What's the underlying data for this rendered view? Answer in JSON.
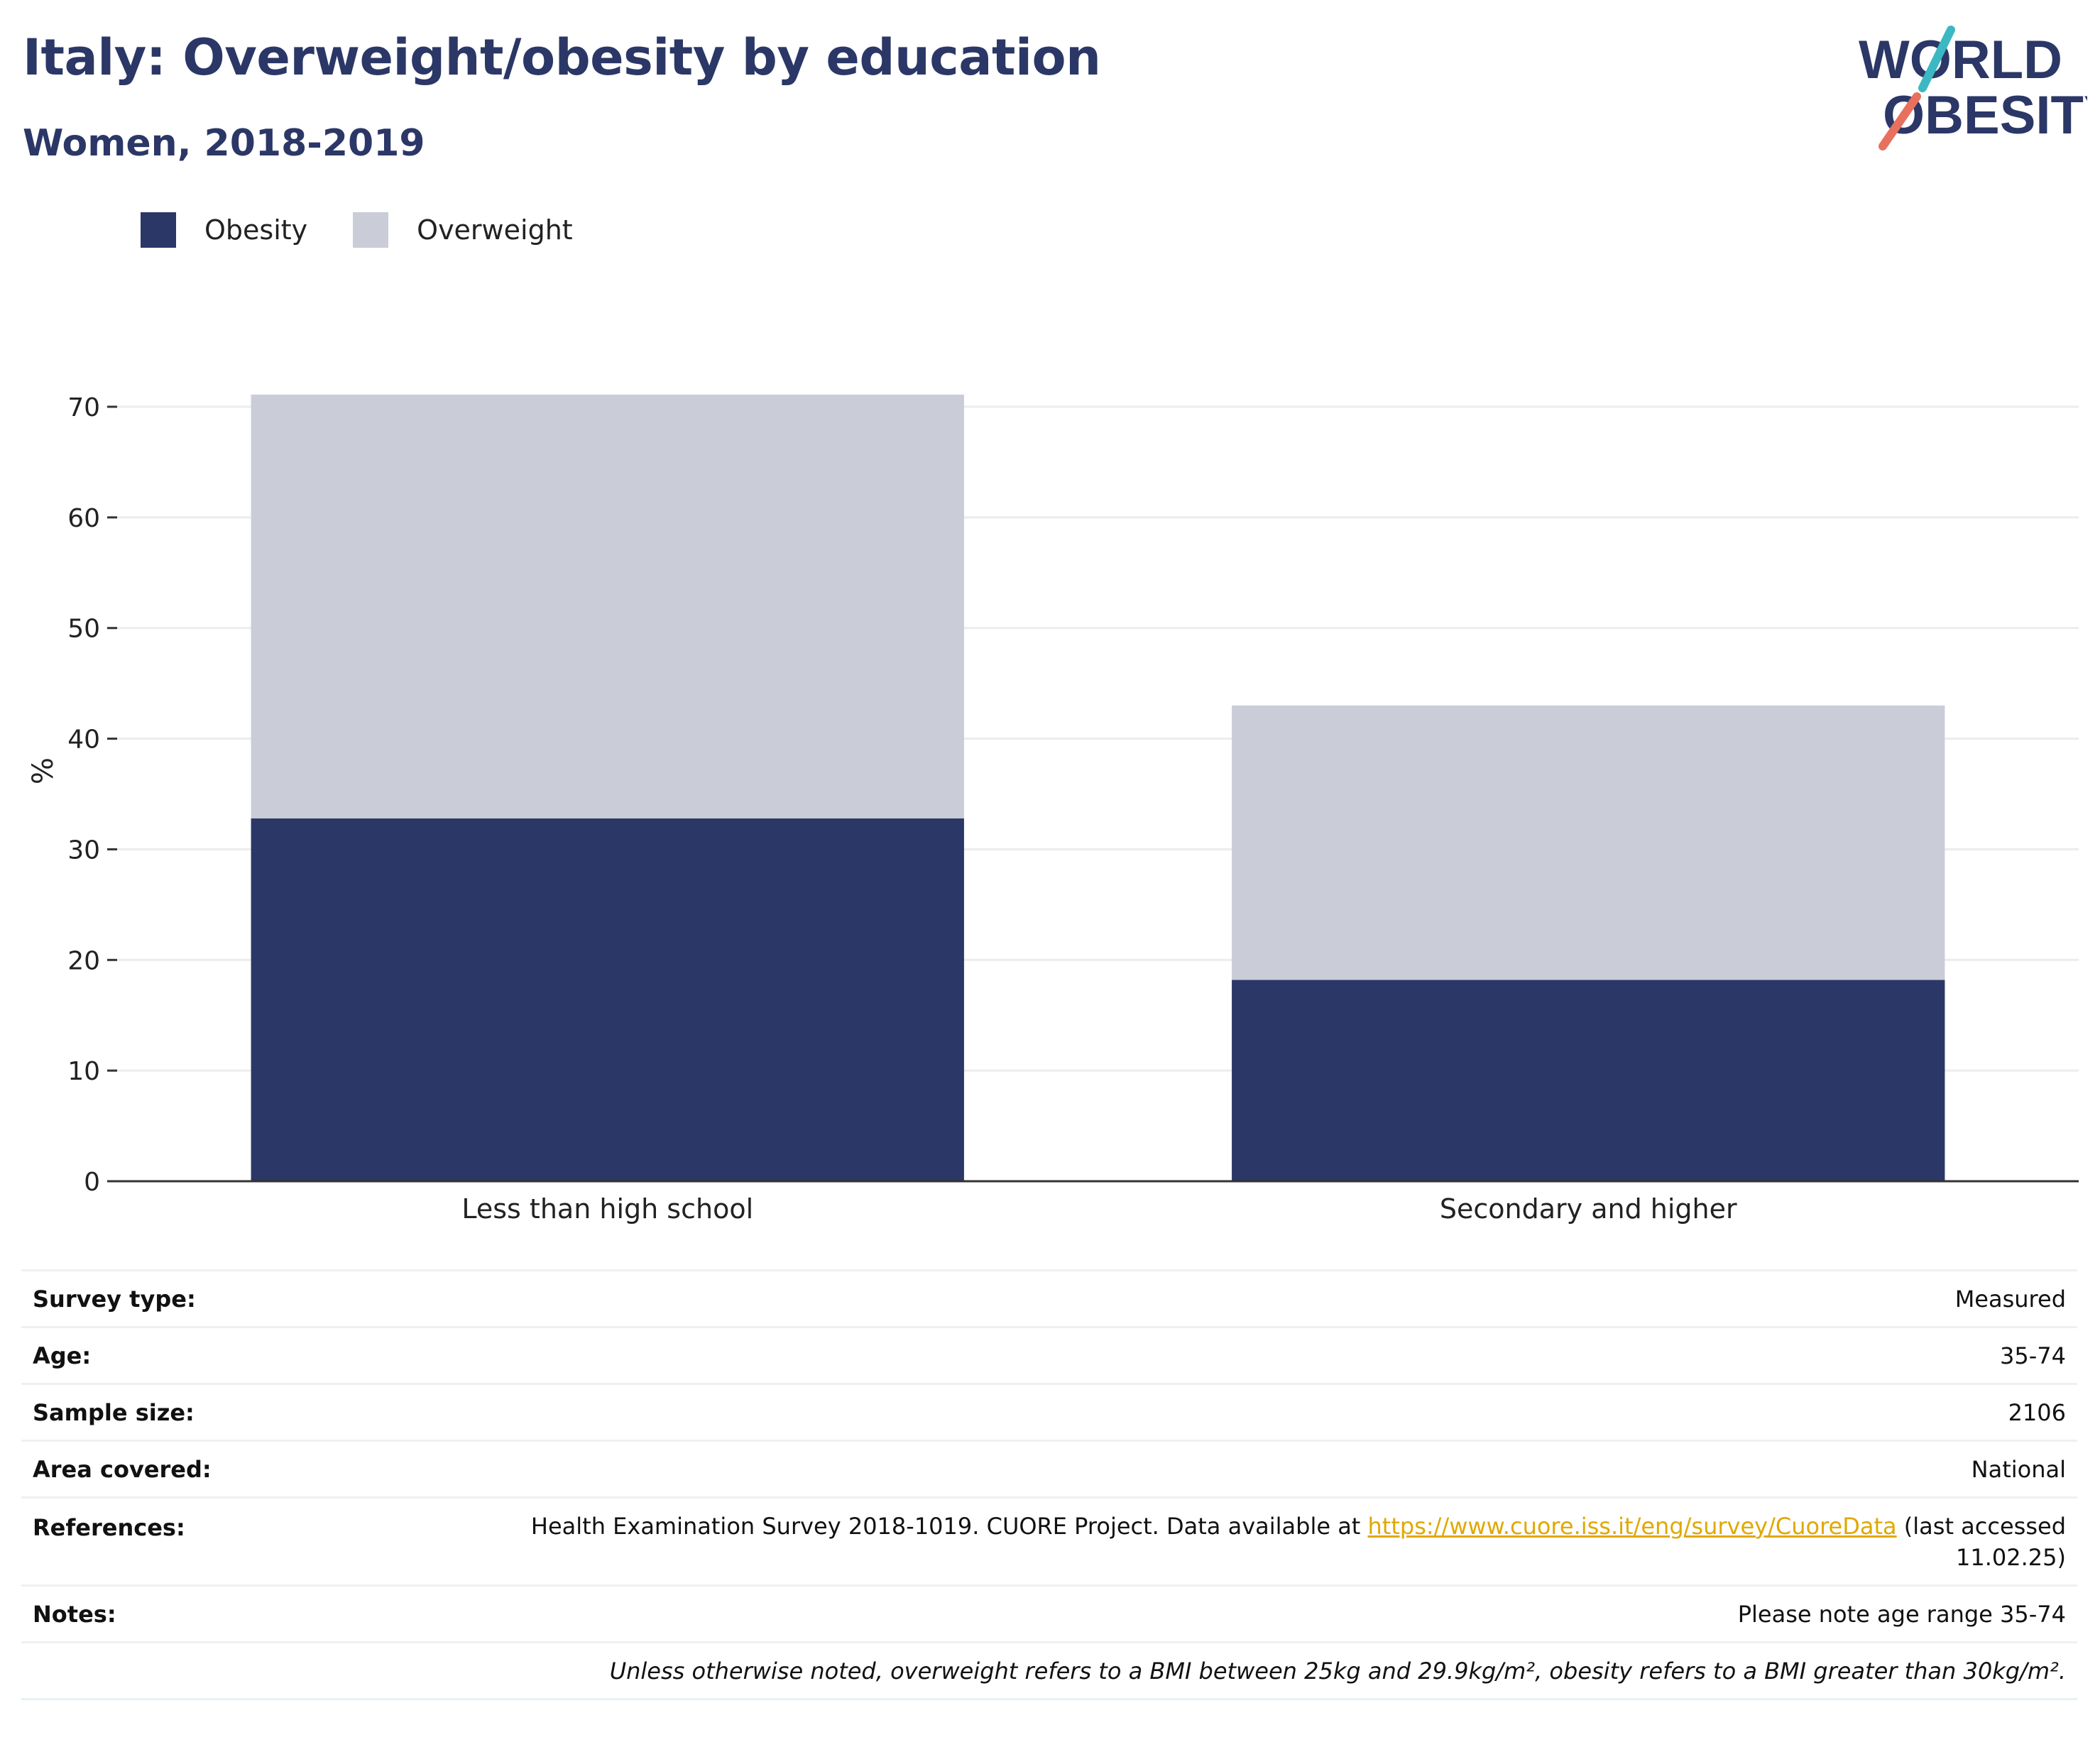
{
  "header": {
    "title": "Italy: Overweight/obesity by education",
    "subtitle": "Women, 2018-2019"
  },
  "logo": {
    "line1": "WORLD",
    "line2": "OBESITY",
    "text_color": "#2b3766",
    "slash_top_color": "#3bb8c3",
    "slash_bottom_color": "#e8705e"
  },
  "colors": {
    "obesity": "#2b3766",
    "overweight": "#cacdd8",
    "grid": "#ececef",
    "axis": "#333333",
    "link": "#e0a800"
  },
  "chart_data": {
    "type": "bar",
    "stacked": true,
    "title": "",
    "xlabel": "",
    "ylabel": "%",
    "ylim": [
      0,
      70
    ],
    "yticks": [
      0,
      10,
      20,
      30,
      40,
      50,
      60,
      70
    ],
    "grid": true,
    "legend_position": "top-left",
    "categories": [
      "Less than high school",
      "Secondary and higher"
    ],
    "series": [
      {
        "name": "Obesity",
        "values": [
          32.8,
          18.2
        ]
      },
      {
        "name": "Overweight",
        "values": [
          38.3,
          24.8
        ]
      }
    ]
  },
  "info": {
    "survey_type": {
      "label": "Survey type:",
      "value": "Measured"
    },
    "age": {
      "label": "Age:",
      "value": "35-74"
    },
    "sample_size": {
      "label": "Sample size:",
      "value": "2106"
    },
    "area_covered": {
      "label": "Area covered:",
      "value": "National"
    },
    "references": {
      "label": "References:",
      "text_before": "Health Examination Survey 2018-1019. CUORE Project. Data available at ",
      "link": "https://www.cuore.iss.it/eng/survey/CuoreData",
      "text_after": " (last accessed",
      "text_line2": "11.02.25)"
    },
    "notes": {
      "label": "Notes:",
      "value": "Please note age range 35-74"
    },
    "footnote": "Unless otherwise noted, overweight refers to a BMI between 25kg and 29.9kg/m², obesity refers to a BMI greater than 30kg/m²."
  }
}
